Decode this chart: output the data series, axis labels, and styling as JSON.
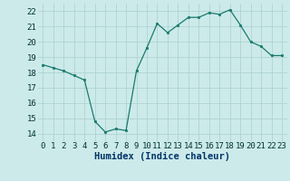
{
  "x": [
    0,
    1,
    2,
    3,
    4,
    5,
    6,
    7,
    8,
    9,
    10,
    11,
    12,
    13,
    14,
    15,
    16,
    17,
    18,
    19,
    20,
    21,
    22,
    23
  ],
  "y": [
    18.5,
    18.3,
    18.1,
    17.8,
    17.5,
    14.8,
    14.1,
    14.3,
    14.2,
    18.1,
    19.6,
    21.2,
    20.6,
    21.1,
    21.6,
    21.6,
    21.9,
    21.8,
    22.1,
    21.1,
    20.0,
    19.7,
    19.1,
    19.1
  ],
  "xlim": [
    -0.5,
    23.5
  ],
  "ylim": [
    13.5,
    22.5
  ],
  "yticks": [
    14,
    15,
    16,
    17,
    18,
    19,
    20,
    21,
    22
  ],
  "xticks": [
    0,
    1,
    2,
    3,
    4,
    5,
    6,
    7,
    8,
    9,
    10,
    11,
    12,
    13,
    14,
    15,
    16,
    17,
    18,
    19,
    20,
    21,
    22,
    23
  ],
  "xlabel": "Humidex (Indice chaleur)",
  "line_color": "#1a7a6e",
  "marker_color": "#1a7a6e",
  "bg_color": "#cceaea",
  "grid_color": "#aacece",
  "xlabel_color": "#003366",
  "tick_fontsize": 6.5,
  "xlabel_fontsize": 7.5
}
